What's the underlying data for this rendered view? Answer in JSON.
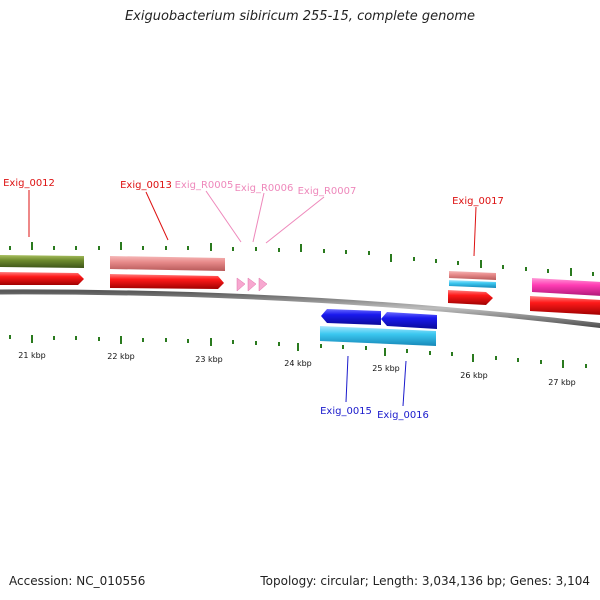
{
  "title": "Exiguobacterium sibiricum 255-15, complete genome",
  "footer": {
    "accession": "Accession: NC_010556",
    "topology": "Topology: circular; Length: 3,034,136 bp; Genes: 3,104"
  },
  "colors": {
    "backbone": "#8c8c8c",
    "tick": "#2a7a1e",
    "gene_red": "#ff1a1a",
    "gene_olive": "#6e8b2e",
    "gene_salmon": "#e88b8b",
    "gene_pink_rna": "#f7a8d0",
    "gene_blue": "#1a1aee",
    "gene_cyan": "#3cc8f0",
    "gene_magenta": "#ff3cb4",
    "label_red": "#dd1111",
    "label_pink": "#ee88bb",
    "label_blue": "#1a1acc"
  },
  "genome_map": {
    "scale_labels": [
      "21 kbp",
      "22 kbp",
      "23 kbp",
      "24 kbp",
      "25 kbp",
      "26 kbp",
      "27 kbp"
    ],
    "gene_labels": [
      {
        "id": "Exig_0012",
        "strand": "forward"
      },
      {
        "id": "Exig_0013",
        "strand": "forward"
      },
      {
        "id": "Exig_R0005",
        "strand": "forward",
        "type": "rna"
      },
      {
        "id": "Exig_R0006",
        "strand": "forward",
        "type": "rna"
      },
      {
        "id": "Exig_R0007",
        "strand": "forward",
        "type": "rna"
      },
      {
        "id": "Exig_0017",
        "strand": "forward"
      },
      {
        "id": "Exig_0015",
        "strand": "reverse"
      },
      {
        "id": "Exig_0016",
        "strand": "reverse"
      }
    ]
  }
}
